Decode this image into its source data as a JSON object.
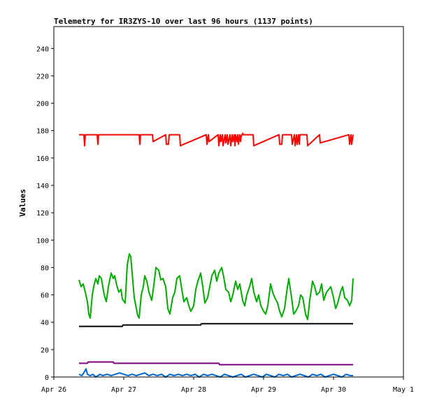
{
  "chart_data": {
    "type": "line",
    "title": "Telemetry for IR3ZYS-10 over last 96 hours (1137 points)",
    "xlabel": "",
    "ylabel": "Values",
    "xlim": [
      0,
      5
    ],
    "ylim": [
      0,
      256
    ],
    "x_ticks": [
      {
        "value": 0,
        "label": "Apr 26"
      },
      {
        "value": 1,
        "label": "Apr 27"
      },
      {
        "value": 2,
        "label": "Apr 28"
      },
      {
        "value": 3,
        "label": "Apr 29"
      },
      {
        "value": 4,
        "label": "Apr 30"
      },
      {
        "value": 5,
        "label": "May 1"
      }
    ],
    "y_ticks": [
      0,
      20,
      40,
      60,
      80,
      100,
      120,
      140,
      160,
      180,
      200,
      220,
      240
    ],
    "grid": false,
    "legend": "none",
    "series": [
      {
        "color": "#ff0000",
        "x": [
          0.36,
          0.43,
          0.44,
          0.45,
          0.62,
          0.63,
          0.64,
          1.22,
          1.23,
          1.24,
          1.41,
          1.42,
          1.6,
          1.61,
          1.64,
          1.65,
          1.8,
          1.81,
          2.18,
          2.19,
          2.21,
          2.22,
          2.35,
          2.36,
          2.38,
          2.39,
          2.41,
          2.42,
          2.45,
          2.46,
          2.48,
          2.49,
          2.52,
          2.53,
          2.55,
          2.56,
          2.58,
          2.59,
          2.6,
          2.62,
          2.63,
          2.64,
          2.66,
          2.67,
          2.68,
          2.7,
          2.71,
          2.85,
          2.86,
          3.22,
          3.23,
          3.26,
          3.27,
          3.4,
          3.41,
          3.44,
          3.45,
          3.47,
          3.48,
          3.5,
          3.51,
          3.52,
          3.62,
          3.63,
          3.8,
          3.81,
          4.22,
          4.23,
          4.25,
          4.26,
          4.28
        ],
        "y": [
          177,
          177,
          169,
          177,
          177,
          170,
          177,
          177,
          170,
          177,
          177,
          172,
          177,
          170,
          170,
          177,
          177,
          169,
          177,
          170,
          177,
          172,
          177,
          169,
          177,
          172,
          177,
          169,
          177,
          171,
          177,
          170,
          177,
          169,
          177,
          172,
          177,
          169,
          177,
          172,
          177,
          170,
          177,
          172,
          176,
          178,
          177,
          177,
          169,
          177,
          170,
          170,
          177,
          177,
          170,
          177,
          169,
          177,
          170,
          177,
          170,
          177,
          177,
          169,
          177,
          171,
          177,
          170,
          177,
          170,
          177
        ]
      },
      {
        "color": "#00aa00",
        "x": [
          0.36,
          0.39,
          0.42,
          0.45,
          0.48,
          0.5,
          0.52,
          0.55,
          0.57,
          0.6,
          0.63,
          0.65,
          0.68,
          0.72,
          0.75,
          0.78,
          0.82,
          0.85,
          0.87,
          0.9,
          0.93,
          0.96,
          0.98,
          1.02,
          1.05,
          1.08,
          1.1,
          1.12,
          1.15,
          1.18,
          1.2,
          1.22,
          1.25,
          1.28,
          1.3,
          1.33,
          1.36,
          1.4,
          1.43,
          1.46,
          1.5,
          1.53,
          1.56,
          1.6,
          1.63,
          1.66,
          1.7,
          1.73,
          1.76,
          1.8,
          1.83,
          1.86,
          1.9,
          1.93,
          1.96,
          2.0,
          2.03,
          2.06,
          2.1,
          2.13,
          2.16,
          2.2,
          2.23,
          2.26,
          2.3,
          2.33,
          2.36,
          2.4,
          2.43,
          2.46,
          2.5,
          2.53,
          2.56,
          2.6,
          2.63,
          2.66,
          2.7,
          2.73,
          2.76,
          2.8,
          2.83,
          2.86,
          2.9,
          2.93,
          2.96,
          3.0,
          3.03,
          3.06,
          3.1,
          3.13,
          3.16,
          3.2,
          3.23,
          3.26,
          3.3,
          3.33,
          3.36,
          3.4,
          3.43,
          3.46,
          3.5,
          3.53,
          3.56,
          3.6,
          3.63,
          3.66,
          3.7,
          3.73,
          3.76,
          3.8,
          3.83,
          3.86,
          3.9,
          3.93,
          3.96,
          4.0,
          4.03,
          4.06,
          4.1,
          4.13,
          4.16,
          4.2,
          4.23,
          4.26,
          4.28
        ],
        "y": [
          71,
          66,
          68,
          62,
          55,
          46,
          43,
          60,
          66,
          72,
          68,
          74,
          72,
          60,
          55,
          66,
          76,
          72,
          74,
          67,
          62,
          64,
          57,
          54,
          82,
          90,
          88,
          76,
          58,
          50,
          45,
          43,
          60,
          66,
          74,
          70,
          62,
          56,
          67,
          80,
          78,
          71,
          72,
          66,
          50,
          46,
          58,
          62,
          72,
          74,
          64,
          55,
          58,
          52,
          48,
          52,
          64,
          70,
          76,
          66,
          54,
          58,
          66,
          74,
          78,
          70,
          76,
          80,
          73,
          64,
          62,
          55,
          60,
          70,
          64,
          68,
          56,
          52,
          60,
          66,
          72,
          62,
          55,
          60,
          52,
          48,
          46,
          52,
          68,
          62,
          58,
          54,
          48,
          44,
          50,
          62,
          72,
          58,
          46,
          48,
          52,
          60,
          58,
          46,
          42,
          56,
          70,
          66,
          60,
          62,
          68,
          56,
          62,
          64,
          66,
          58,
          50,
          54,
          62,
          66,
          58,
          56,
          52,
          56,
          72
        ]
      },
      {
        "color": "#000000",
        "x": [
          0.36,
          0.98,
          0.99,
          2.1,
          2.11,
          4.28
        ],
        "y": [
          37,
          37,
          38,
          38,
          39,
          39
        ]
      },
      {
        "color": "#800080",
        "x": [
          0.36,
          0.48,
          0.49,
          0.85,
          0.86,
          0.91,
          0.92,
          1.5,
          1.51,
          2.36,
          2.37,
          4.28
        ],
        "y": [
          10,
          10,
          11,
          11,
          10,
          10,
          10,
          10,
          10,
          10,
          9,
          9
        ]
      },
      {
        "color": "#0066cc",
        "x": [
          0.36,
          0.4,
          0.44,
          0.46,
          0.48,
          0.52,
          0.56,
          0.6,
          0.66,
          0.7,
          0.76,
          0.82,
          0.88,
          0.94,
          1.0,
          1.06,
          1.12,
          1.18,
          1.24,
          1.3,
          1.36,
          1.42,
          1.48,
          1.54,
          1.6,
          1.66,
          1.72,
          1.78,
          1.84,
          1.9,
          1.96,
          2.02,
          2.08,
          2.14,
          2.2,
          2.26,
          2.32,
          2.38,
          2.44,
          2.5,
          2.56,
          2.62,
          2.68,
          2.74,
          2.8,
          2.86,
          2.92,
          2.98,
          3.04,
          3.1,
          3.16,
          3.22,
          3.28,
          3.34,
          3.4,
          3.46,
          3.52,
          3.58,
          3.64,
          3.7,
          3.76,
          3.82,
          3.88,
          3.94,
          4.0,
          4.06,
          4.12,
          4.18,
          4.24,
          4.28
        ],
        "y": [
          2,
          1,
          4,
          6,
          2,
          1,
          2,
          0,
          2,
          1,
          2,
          1,
          2,
          3,
          2,
          1,
          2,
          1,
          2,
          3,
          1,
          2,
          1,
          2,
          0,
          2,
          1,
          2,
          1,
          2,
          1,
          2,
          0,
          2,
          1,
          2,
          1,
          0,
          2,
          1,
          0,
          1,
          2,
          0,
          1,
          2,
          1,
          0,
          2,
          1,
          0,
          2,
          1,
          2,
          0,
          1,
          2,
          1,
          0,
          2,
          1,
          2,
          0,
          1,
          2,
          1,
          0,
          2,
          1,
          1
        ]
      }
    ]
  }
}
